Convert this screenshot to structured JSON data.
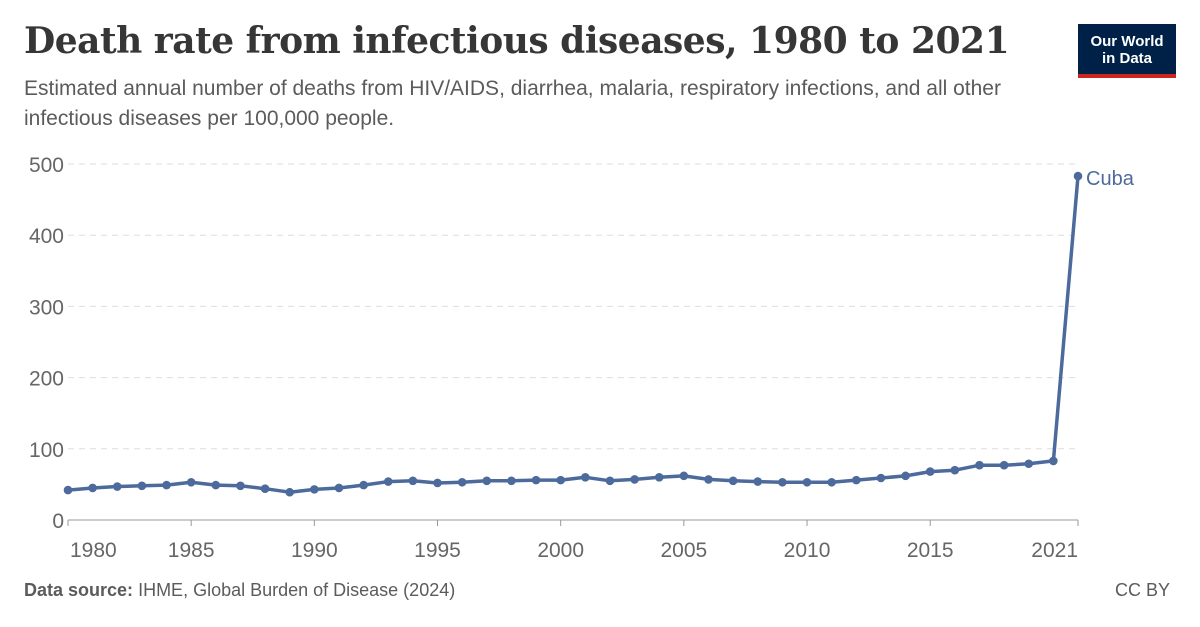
{
  "header": {
    "title": "Death rate from infectious diseases, 1980 to 2021",
    "subtitle": "Estimated annual number of deaths from HIV/AIDS, diarrhea, malaria, respiratory infections, and all other infectious diseases per 100,000 people."
  },
  "logo": {
    "line1": "Our World",
    "line2": "in Data",
    "bg_color": "#002147",
    "accent_color": "#ce261e"
  },
  "footer": {
    "source_label": "Data source:",
    "source_text": "IHME, Global Burden of Disease (2024)",
    "license": "CC BY"
  },
  "chart_data": {
    "type": "line",
    "title": "Death rate from infectious diseases, 1980 to 2021",
    "xlabel": "",
    "ylabel": "",
    "xlim": [
      1980,
      2021
    ],
    "ylim": [
      0,
      500
    ],
    "y_ticks": [
      0,
      100,
      200,
      300,
      400,
      500
    ],
    "x_ticks": [
      1980,
      1985,
      1990,
      1995,
      2000,
      2005,
      2010,
      2015,
      2021
    ],
    "grid": "horizontal-dashed",
    "legend": "inline-end-label",
    "series": [
      {
        "name": "Cuba",
        "color": "#4c6a9c",
        "x": [
          1980,
          1981,
          1982,
          1983,
          1984,
          1985,
          1986,
          1987,
          1988,
          1989,
          1990,
          1991,
          1992,
          1993,
          1994,
          1995,
          1996,
          1997,
          1998,
          1999,
          2000,
          2001,
          2002,
          2003,
          2004,
          2005,
          2006,
          2007,
          2008,
          2009,
          2010,
          2011,
          2012,
          2013,
          2014,
          2015,
          2016,
          2017,
          2018,
          2019,
          2020,
          2021
        ],
        "values": [
          42,
          45,
          47,
          48,
          49,
          53,
          49,
          48,
          44,
          39,
          43,
          45,
          49,
          54,
          55,
          52,
          53,
          55,
          55,
          56,
          56,
          60,
          55,
          57,
          60,
          62,
          57,
          55,
          54,
          53,
          53,
          53,
          56,
          59,
          62,
          68,
          70,
          77,
          77,
          79,
          83,
          483
        ]
      }
    ]
  }
}
